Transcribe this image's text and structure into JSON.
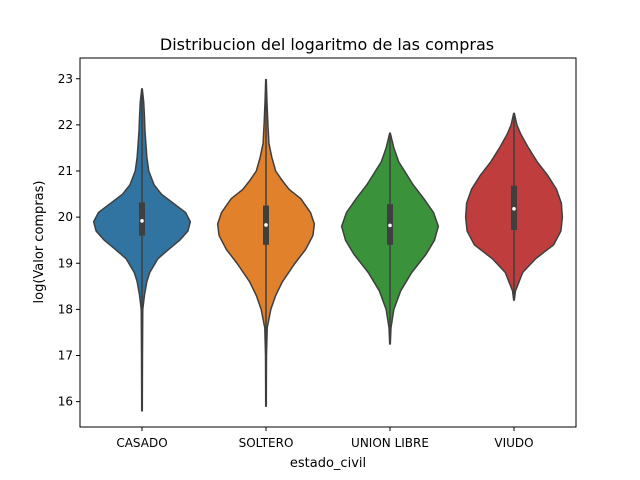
{
  "chart_data": {
    "type": "violin",
    "title": "Distribucion del logaritmo de las compras",
    "xlabel": "estado_civil",
    "ylabel": "log(Valor compras)",
    "ylim": [
      15.45,
      23.45
    ],
    "yticks": [
      16,
      17,
      18,
      19,
      20,
      21,
      22,
      23
    ],
    "grid": false,
    "legend": "none",
    "categories": [
      "CASADO",
      "SOLTERO",
      "UNION LIBRE",
      "VIUDO"
    ],
    "series": [
      {
        "category": "CASADO",
        "color": "#3274a1",
        "stats": {
          "min": 15.8,
          "q1": 19.6,
          "median": 19.92,
          "q3": 20.32,
          "max": 22.78
        },
        "density_profile": [
          [
            15.8,
            0.006
          ],
          [
            17.0,
            0.01
          ],
          [
            18.0,
            0.016
          ],
          [
            18.3,
            0.05
          ],
          [
            18.6,
            0.1
          ],
          [
            18.8,
            0.16
          ],
          [
            19.1,
            0.33
          ],
          [
            19.3,
            0.55
          ],
          [
            19.5,
            0.78
          ],
          [
            19.7,
            0.95
          ],
          [
            19.9,
            1.0
          ],
          [
            20.1,
            0.9
          ],
          [
            20.3,
            0.65
          ],
          [
            20.5,
            0.4
          ],
          [
            20.7,
            0.25
          ],
          [
            21.0,
            0.14
          ],
          [
            21.3,
            0.1
          ],
          [
            21.6,
            0.08
          ],
          [
            21.9,
            0.06
          ],
          [
            22.2,
            0.05
          ],
          [
            22.5,
            0.035
          ],
          [
            22.78,
            0.006
          ]
        ]
      },
      {
        "category": "SOLTERO",
        "color": "#e1812c",
        "stats": {
          "min": 15.9,
          "q1": 19.4,
          "median": 19.83,
          "q3": 20.25,
          "max": 22.98
        },
        "density_profile": [
          [
            15.9,
            0.006
          ],
          [
            17.0,
            0.01
          ],
          [
            17.6,
            0.025
          ],
          [
            18.0,
            0.1
          ],
          [
            18.3,
            0.2
          ],
          [
            18.6,
            0.34
          ],
          [
            19.0,
            0.6
          ],
          [
            19.3,
            0.82
          ],
          [
            19.6,
            0.97
          ],
          [
            19.85,
            1.0
          ],
          [
            20.1,
            0.92
          ],
          [
            20.4,
            0.72
          ],
          [
            20.6,
            0.48
          ],
          [
            20.8,
            0.33
          ],
          [
            21.0,
            0.2
          ],
          [
            21.3,
            0.12
          ],
          [
            21.6,
            0.06
          ],
          [
            22.0,
            0.04
          ],
          [
            22.5,
            0.02
          ],
          [
            22.98,
            0.006
          ]
        ]
      },
      {
        "category": "UNION LIBRE",
        "color": "#3a923a",
        "stats": {
          "min": 17.25,
          "q1": 19.4,
          "median": 19.82,
          "q3": 20.28,
          "max": 21.82
        },
        "density_profile": [
          [
            17.25,
            0.006
          ],
          [
            17.6,
            0.02
          ],
          [
            18.0,
            0.08
          ],
          [
            18.4,
            0.22
          ],
          [
            18.8,
            0.45
          ],
          [
            19.2,
            0.75
          ],
          [
            19.5,
            0.92
          ],
          [
            19.8,
            1.0
          ],
          [
            20.1,
            0.9
          ],
          [
            20.4,
            0.7
          ],
          [
            20.7,
            0.48
          ],
          [
            21.0,
            0.3
          ],
          [
            21.2,
            0.18
          ],
          [
            21.5,
            0.08
          ],
          [
            21.82,
            0.006
          ]
        ]
      },
      {
        "category": "VIUDO",
        "color": "#c03d3e",
        "stats": {
          "min": 18.2,
          "q1": 19.72,
          "median": 20.18,
          "q3": 20.68,
          "max": 22.25
        },
        "density_profile": [
          [
            18.2,
            0.006
          ],
          [
            18.4,
            0.03
          ],
          [
            18.8,
            0.18
          ],
          [
            19.1,
            0.45
          ],
          [
            19.4,
            0.82
          ],
          [
            19.7,
            0.97
          ],
          [
            20.0,
            1.0
          ],
          [
            20.3,
            0.98
          ],
          [
            20.6,
            0.88
          ],
          [
            20.9,
            0.7
          ],
          [
            21.2,
            0.48
          ],
          [
            21.5,
            0.3
          ],
          [
            21.8,
            0.14
          ],
          [
            22.0,
            0.06
          ],
          [
            22.25,
            0.006
          ]
        ]
      }
    ]
  }
}
